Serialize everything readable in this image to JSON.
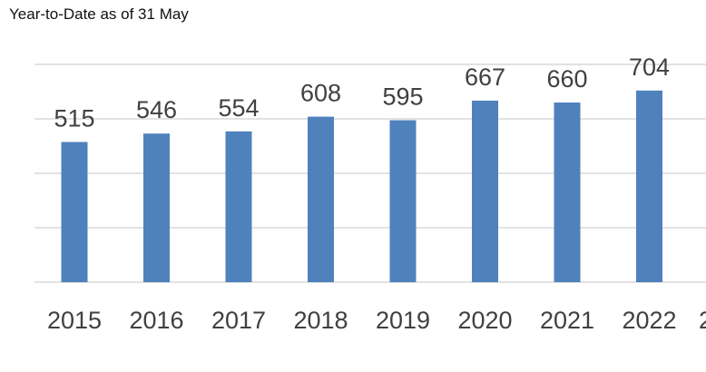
{
  "chart_data": {
    "type": "bar",
    "title": "Year-to-Date as of 31 May",
    "categories": [
      "2015",
      "2016",
      "2017",
      "2018",
      "2019",
      "2020",
      "2021",
      "2022"
    ],
    "values": [
      515,
      546,
      554,
      608,
      595,
      667,
      660,
      704
    ],
    "xlabel": "",
    "ylabel": "",
    "ylim": [
      0,
      800
    ],
    "grid": true,
    "legend": "none",
    "bar_color": "#4f81bd",
    "grid_color": "#d9d9d9",
    "label_color": "#404040",
    "clipped_next_category": "2"
  }
}
